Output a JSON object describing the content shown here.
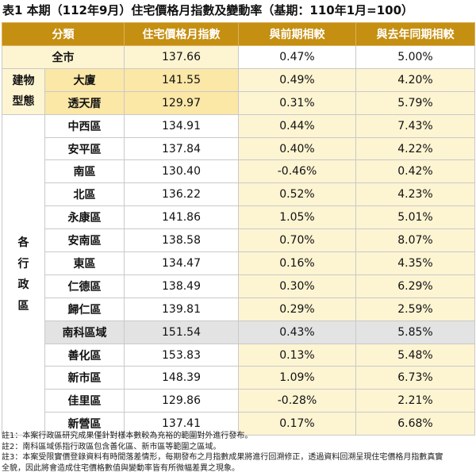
{
  "title": "表1 本期（112年9月）住宅價格月指數及變動率（基期：110年1月=100）",
  "headers": [
    "分類",
    "住宅價格月指數",
    "與前期相較",
    "與去年同期相較"
  ],
  "city": {
    "label": "全市",
    "index": "137.66",
    "mom": "0.47%",
    "yoy": "5.00%"
  },
  "building_type": {
    "group_label_line1": "建物",
    "group_label_line2": "型態",
    "rows": [
      {
        "label": "大廈",
        "index": "141.55",
        "mom": "0.49%",
        "yoy": "4.20%"
      },
      {
        "label": "透天厝",
        "index": "129.97",
        "mom": "0.31%",
        "yoy": "5.79%"
      }
    ]
  },
  "districts": {
    "group_label_chars": [
      "各",
      "行",
      "政",
      "區"
    ],
    "rows": [
      {
        "label": "中西區",
        "index": "134.91",
        "mom": "0.44%",
        "yoy": "7.43%"
      },
      {
        "label": "安平區",
        "index": "137.84",
        "mom": "0.40%",
        "yoy": "4.22%"
      },
      {
        "label": "南區",
        "index": "130.40",
        "mom": "-0.46%",
        "yoy": "0.42%"
      },
      {
        "label": "北區",
        "index": "136.22",
        "mom": "0.52%",
        "yoy": "4.23%"
      },
      {
        "label": "永康區",
        "index": "141.86",
        "mom": "1.05%",
        "yoy": "5.01%"
      },
      {
        "label": "安南區",
        "index": "138.58",
        "mom": "0.70%",
        "yoy": "8.07%"
      },
      {
        "label": "東區",
        "index": "134.47",
        "mom": "0.16%",
        "yoy": "4.35%"
      },
      {
        "label": "仁德區",
        "index": "138.49",
        "mom": "0.30%",
        "yoy": "6.29%"
      },
      {
        "label": "歸仁區",
        "index": "139.81",
        "mom": "0.29%",
        "yoy": "2.59%"
      },
      {
        "label": "南科區域",
        "index": "151.54",
        "mom": "0.43%",
        "yoy": "5.85%"
      },
      {
        "label": "善化區",
        "index": "153.83",
        "mom": "0.13%",
        "yoy": "5.48%"
      },
      {
        "label": "新市區",
        "index": "148.39",
        "mom": "1.09%",
        "yoy": "6.73%"
      },
      {
        "label": "佳里區",
        "index": "129.86",
        "mom": "-0.28%",
        "yoy": "2.21%"
      },
      {
        "label": "新營區",
        "index": "137.41",
        "mom": "0.17%",
        "yoy": "6.68%"
      }
    ]
  },
  "notes": [
    "註1：本案行政區研究成果僅針對樣本數較為充裕的範圍對外進行發布。",
    "註2：南科區域係指行政區包含善化區、新市區等範圍之區域。",
    "註3：本案受限實價登錄資料有時間落差情形，每期發布之月指數成果將進行回溯修正，透過資料回溯呈現住宅價格月指數真實",
    "全貌，因此將會造成住宅價格數值與變動率皆有所微幅差異之現象。"
  ],
  "colors": {
    "header_bg": "#c58f12",
    "highlight_strong": "#fbe7a6",
    "highlight_light": "#fdf4d2",
    "south_science_park_row": "#e3e3e3"
  }
}
